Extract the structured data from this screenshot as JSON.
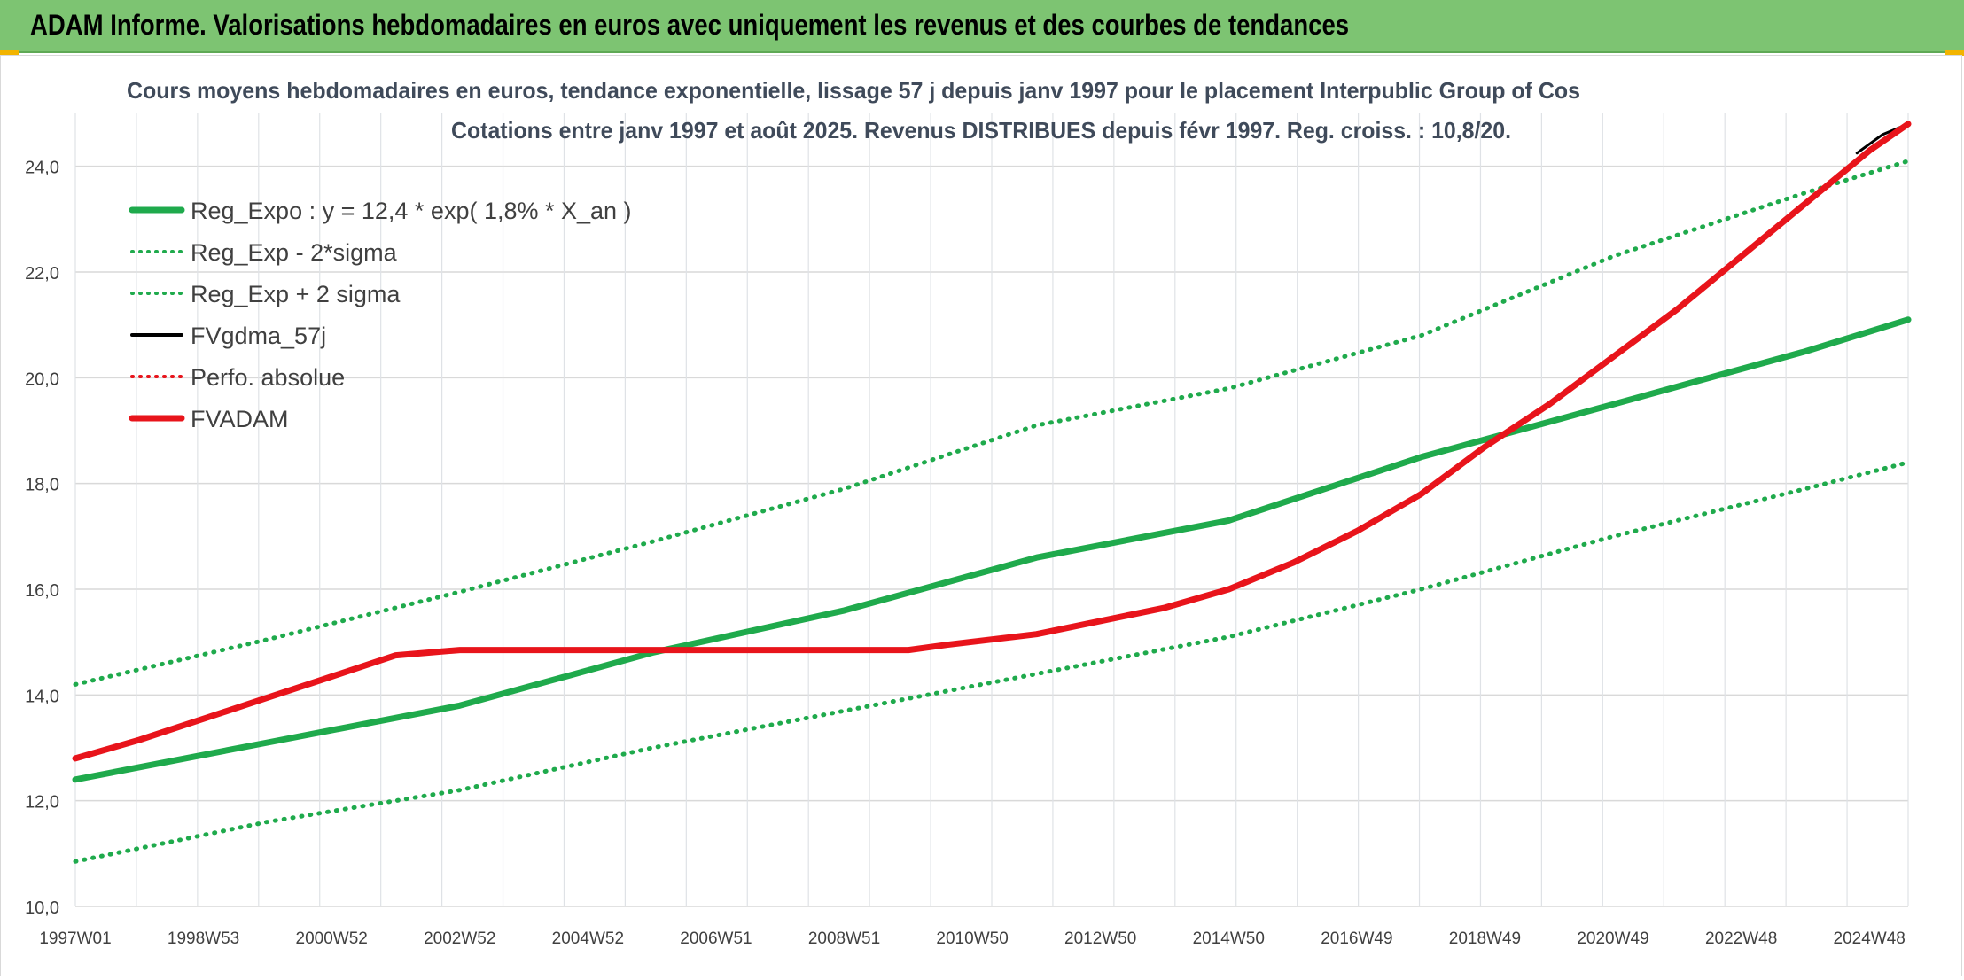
{
  "banner": {
    "title": "ADAM Informe. Valorisations hebdomadaires en euros avec uniquement les revenus et des courbes de tendances"
  },
  "colors": {
    "banner_bg": "#7dc472",
    "green": "#1faa4c",
    "red": "#e8141b",
    "black": "#000000",
    "grid": "#d9d9d9",
    "corner_accent": "#f2b400"
  },
  "chart_data": {
    "type": "line",
    "title": "Cours moyens hebdomadaires en euros, tendance exponentielle, lissage 57 j depuis janv 1997 pour le placement Interpublic Group of Cos",
    "subtitle": "Cotations entre janv 1997 et août 2025. Revenus DISTRIBUES depuis févr 1997. Reg. croiss. : 10,8/20.",
    "xlabel": "",
    "ylabel": "",
    "ylim": [
      10,
      25
    ],
    "y_ticks": [
      "10,0",
      "12,0",
      "14,0",
      "16,0",
      "18,0",
      "20,0",
      "22,0",
      "24,0"
    ],
    "x_range": [
      1997.0,
      2025.6
    ],
    "x_ticks": [
      "1997W01",
      "1998W53",
      "2000W52",
      "2002W52",
      "2004W52",
      "2006W51",
      "2008W51",
      "2010W50",
      "2012W50",
      "2014W50",
      "2016W49",
      "2018W49",
      "2020W49",
      "2022W48",
      "2024W48"
    ],
    "grid": true,
    "legend_position": "top-left",
    "series": [
      {
        "name": "Reg_Expo : y = 12,4 * exp( 1,8% *  X_an )",
        "style": "solid-thick",
        "color": "#1faa4c",
        "x": [
          1997.0,
          2000.0,
          2003.0,
          2006.0,
          2009.0,
          2012.0,
          2015.0,
          2018.0,
          2021.0,
          2024.0,
          2025.6
        ],
        "y": [
          12.4,
          13.1,
          13.8,
          14.8,
          15.6,
          16.6,
          17.3,
          18.5,
          19.5,
          20.5,
          21.1
        ]
      },
      {
        "name": "Reg_Exp - 2*sigma",
        "style": "dotted",
        "color": "#1faa4c",
        "x": [
          1997.0,
          2000.0,
          2003.0,
          2006.0,
          2009.0,
          2012.0,
          2015.0,
          2018.0,
          2021.0,
          2024.0,
          2025.6
        ],
        "y": [
          10.85,
          11.6,
          12.2,
          13.0,
          13.7,
          14.4,
          15.1,
          16.0,
          17.0,
          17.9,
          18.4
        ]
      },
      {
        "name": "Reg_Exp + 2 sigma",
        "style": "dotted",
        "color": "#1faa4c",
        "x": [
          1997.0,
          2000.0,
          2003.0,
          2006.0,
          2009.0,
          2012.0,
          2015.0,
          2018.0,
          2021.0,
          2024.0,
          2025.6
        ],
        "y": [
          14.2,
          15.05,
          15.95,
          16.9,
          17.9,
          19.1,
          19.8,
          20.8,
          22.3,
          23.5,
          24.1
        ]
      },
      {
        "name": "FVgdma_57j",
        "style": "solid",
        "color": "#000000",
        "x": [
          2024.8,
          2025.2,
          2025.6
        ],
        "y": [
          24.25,
          24.6,
          24.8
        ]
      },
      {
        "name": "Perfo. absolue",
        "style": "dotted",
        "color": "#e8141b",
        "x": [],
        "y": []
      },
      {
        "name": "FVADAM",
        "style": "solid-thick",
        "color": "#e8141b",
        "x": [
          1997.0,
          1998.0,
          1999.0,
          2000.0,
          2001.0,
          2002.0,
          2003.0,
          2006.0,
          2010.0,
          2010.6,
          2012.0,
          2013.0,
          2014.0,
          2015.0,
          2016.0,
          2017.0,
          2018.0,
          2019.0,
          2020.0,
          2021.0,
          2022.0,
          2023.0,
          2024.0,
          2025.0,
          2025.6
        ],
        "y": [
          12.8,
          13.15,
          13.55,
          13.95,
          14.35,
          14.75,
          14.85,
          14.85,
          14.85,
          14.95,
          15.15,
          15.4,
          15.65,
          16.0,
          16.5,
          17.1,
          17.8,
          18.7,
          19.5,
          20.4,
          21.3,
          22.3,
          23.3,
          24.3,
          24.8
        ]
      }
    ]
  }
}
